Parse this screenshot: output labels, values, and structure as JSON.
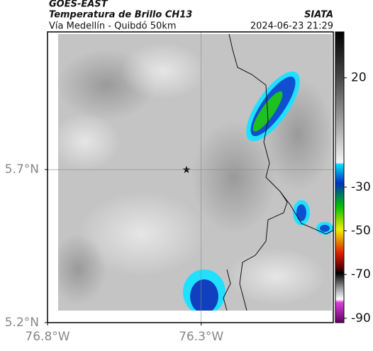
{
  "header": {
    "title": "GOES-EAST",
    "subtitle": "Temperatura de Brillo CH13",
    "route": "Vía Medellín - Quibdó 50km",
    "org": "SIATA",
    "timestamp": "2024-06-23 21:29"
  },
  "map": {
    "xlim": [
      -76.8,
      -75.87
    ],
    "ylim": [
      5.2,
      6.15
    ],
    "xticks": [
      {
        "value": -76.8,
        "label": "76.8°W"
      },
      {
        "value": -76.3,
        "label": "76.3°W"
      }
    ],
    "yticks": [
      {
        "value": 5.7,
        "label": "5.7°N"
      },
      {
        "value": 5.2,
        "label": "5.2°N"
      }
    ],
    "grid": true
  },
  "colorbar": {
    "lim": [
      -92,
      41
    ],
    "ticks": [
      20,
      -30,
      -50,
      -70,
      -90
    ]
  }
}
